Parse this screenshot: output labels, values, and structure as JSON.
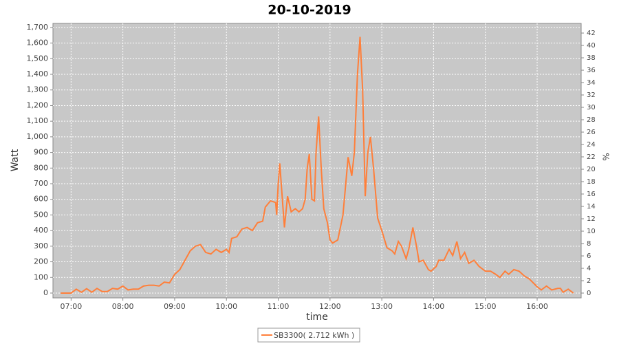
{
  "chart_data": {
    "type": "line",
    "title": "20-10-2019",
    "xlabel": "time",
    "ylabel": "Watt",
    "y2label": "%",
    "x": [
      6.8,
      7.0,
      7.1,
      7.2,
      7.3,
      7.4,
      7.5,
      7.6,
      7.7,
      7.8,
      7.9,
      8.0,
      8.1,
      8.2,
      8.3,
      8.4,
      8.5,
      8.6,
      8.7,
      8.8,
      8.9,
      9.0,
      9.1,
      9.2,
      9.3,
      9.4,
      9.5,
      9.6,
      9.7,
      9.8,
      9.9,
      10.0,
      10.05,
      10.1,
      10.2,
      10.3,
      10.4,
      10.5,
      10.6,
      10.7,
      10.75,
      10.85,
      10.95,
      10.97,
      11.0,
      11.03,
      11.08,
      11.12,
      11.18,
      11.25,
      11.33,
      11.4,
      11.47,
      11.52,
      11.56,
      11.6,
      11.65,
      11.7,
      11.73,
      11.78,
      11.83,
      11.88,
      11.95,
      12.0,
      12.05,
      12.15,
      12.25,
      12.35,
      12.42,
      12.47,
      12.53,
      12.58,
      12.63,
      12.68,
      12.73,
      12.78,
      12.84,
      12.92,
      13.0,
      13.1,
      13.2,
      13.25,
      13.32,
      13.38,
      13.47,
      13.52,
      13.6,
      13.67,
      13.72,
      13.8,
      13.9,
      13.95,
      14.05,
      14.1,
      14.2,
      14.3,
      14.37,
      14.45,
      14.52,
      14.6,
      14.68,
      14.78,
      14.88,
      15.0,
      15.1,
      15.2,
      15.28,
      15.38,
      15.45,
      15.55,
      15.65,
      15.75,
      15.85,
      16.0,
      16.08,
      16.18,
      16.28,
      16.4,
      16.45,
      16.5,
      16.6,
      16.7
    ],
    "series": [
      {
        "name": "SB3300( 2.712 kWh )",
        "color": "#ff7f3a",
        "values": [
          0,
          0,
          25,
          5,
          28,
          5,
          30,
          10,
          10,
          30,
          25,
          45,
          20,
          25,
          25,
          45,
          50,
          50,
          45,
          70,
          65,
          120,
          150,
          210,
          270,
          300,
          310,
          260,
          250,
          280,
          260,
          280,
          260,
          350,
          360,
          410,
          420,
          400,
          450,
          460,
          550,
          590,
          580,
          500,
          700,
          830,
          600,
          420,
          620,
          520,
          540,
          520,
          540,
          600,
          800,
          890,
          600,
          590,
          900,
          1130,
          800,
          540,
          450,
          340,
          320,
          340,
          500,
          870,
          750,
          900,
          1400,
          1640,
          1300,
          620,
          900,
          1000,
          800,
          480,
          400,
          290,
          270,
          250,
          330,
          300,
          220,
          280,
          420,
          300,
          200,
          210,
          150,
          140,
          170,
          210,
          210,
          280,
          240,
          330,
          220,
          260,
          190,
          210,
          170,
          140,
          140,
          120,
          100,
          140,
          120,
          150,
          140,
          110,
          90,
          40,
          20,
          45,
          20,
          30,
          30,
          5,
          25,
          0
        ]
      }
    ],
    "xlim": [
      6.65,
      16.85
    ],
    "xticks": [
      {
        "value": 7,
        "label": "07:00"
      },
      {
        "value": 8,
        "label": "08:00"
      },
      {
        "value": 9,
        "label": "09:00"
      },
      {
        "value": 10,
        "label": "10:00"
      },
      {
        "value": 11,
        "label": "11:00"
      },
      {
        "value": 12,
        "label": "12:00"
      },
      {
        "value": 13,
        "label": "13:00"
      },
      {
        "value": 14,
        "label": "14:00"
      },
      {
        "value": 15,
        "label": "15:00"
      },
      {
        "value": 16,
        "label": "16:00"
      }
    ],
    "ylim": [
      -31,
      1726
    ],
    "yticks": [
      0,
      100,
      200,
      300,
      400,
      500,
      600,
      700,
      800,
      900,
      {
        "value": 1000,
        "label": "1,000"
      },
      {
        "value": 1100,
        "label": "1,100"
      },
      {
        "value": 1200,
        "label": "1,200"
      },
      {
        "value": 1300,
        "label": "1,300"
      },
      {
        "value": 1400,
        "label": "1,400"
      },
      {
        "value": 1500,
        "label": "1,500"
      },
      {
        "value": 1600,
        "label": "1,600"
      },
      {
        "value": 1700,
        "label": "1,700"
      }
    ],
    "y2lim": [
      -0.78,
      43.56
    ],
    "y2ticks": [
      0,
      2,
      4,
      6,
      8,
      10,
      12,
      14,
      16,
      18,
      20,
      22,
      24,
      26,
      28,
      30,
      32,
      34,
      36,
      38,
      40,
      42
    ],
    "grid": true,
    "legend": "bottom"
  }
}
